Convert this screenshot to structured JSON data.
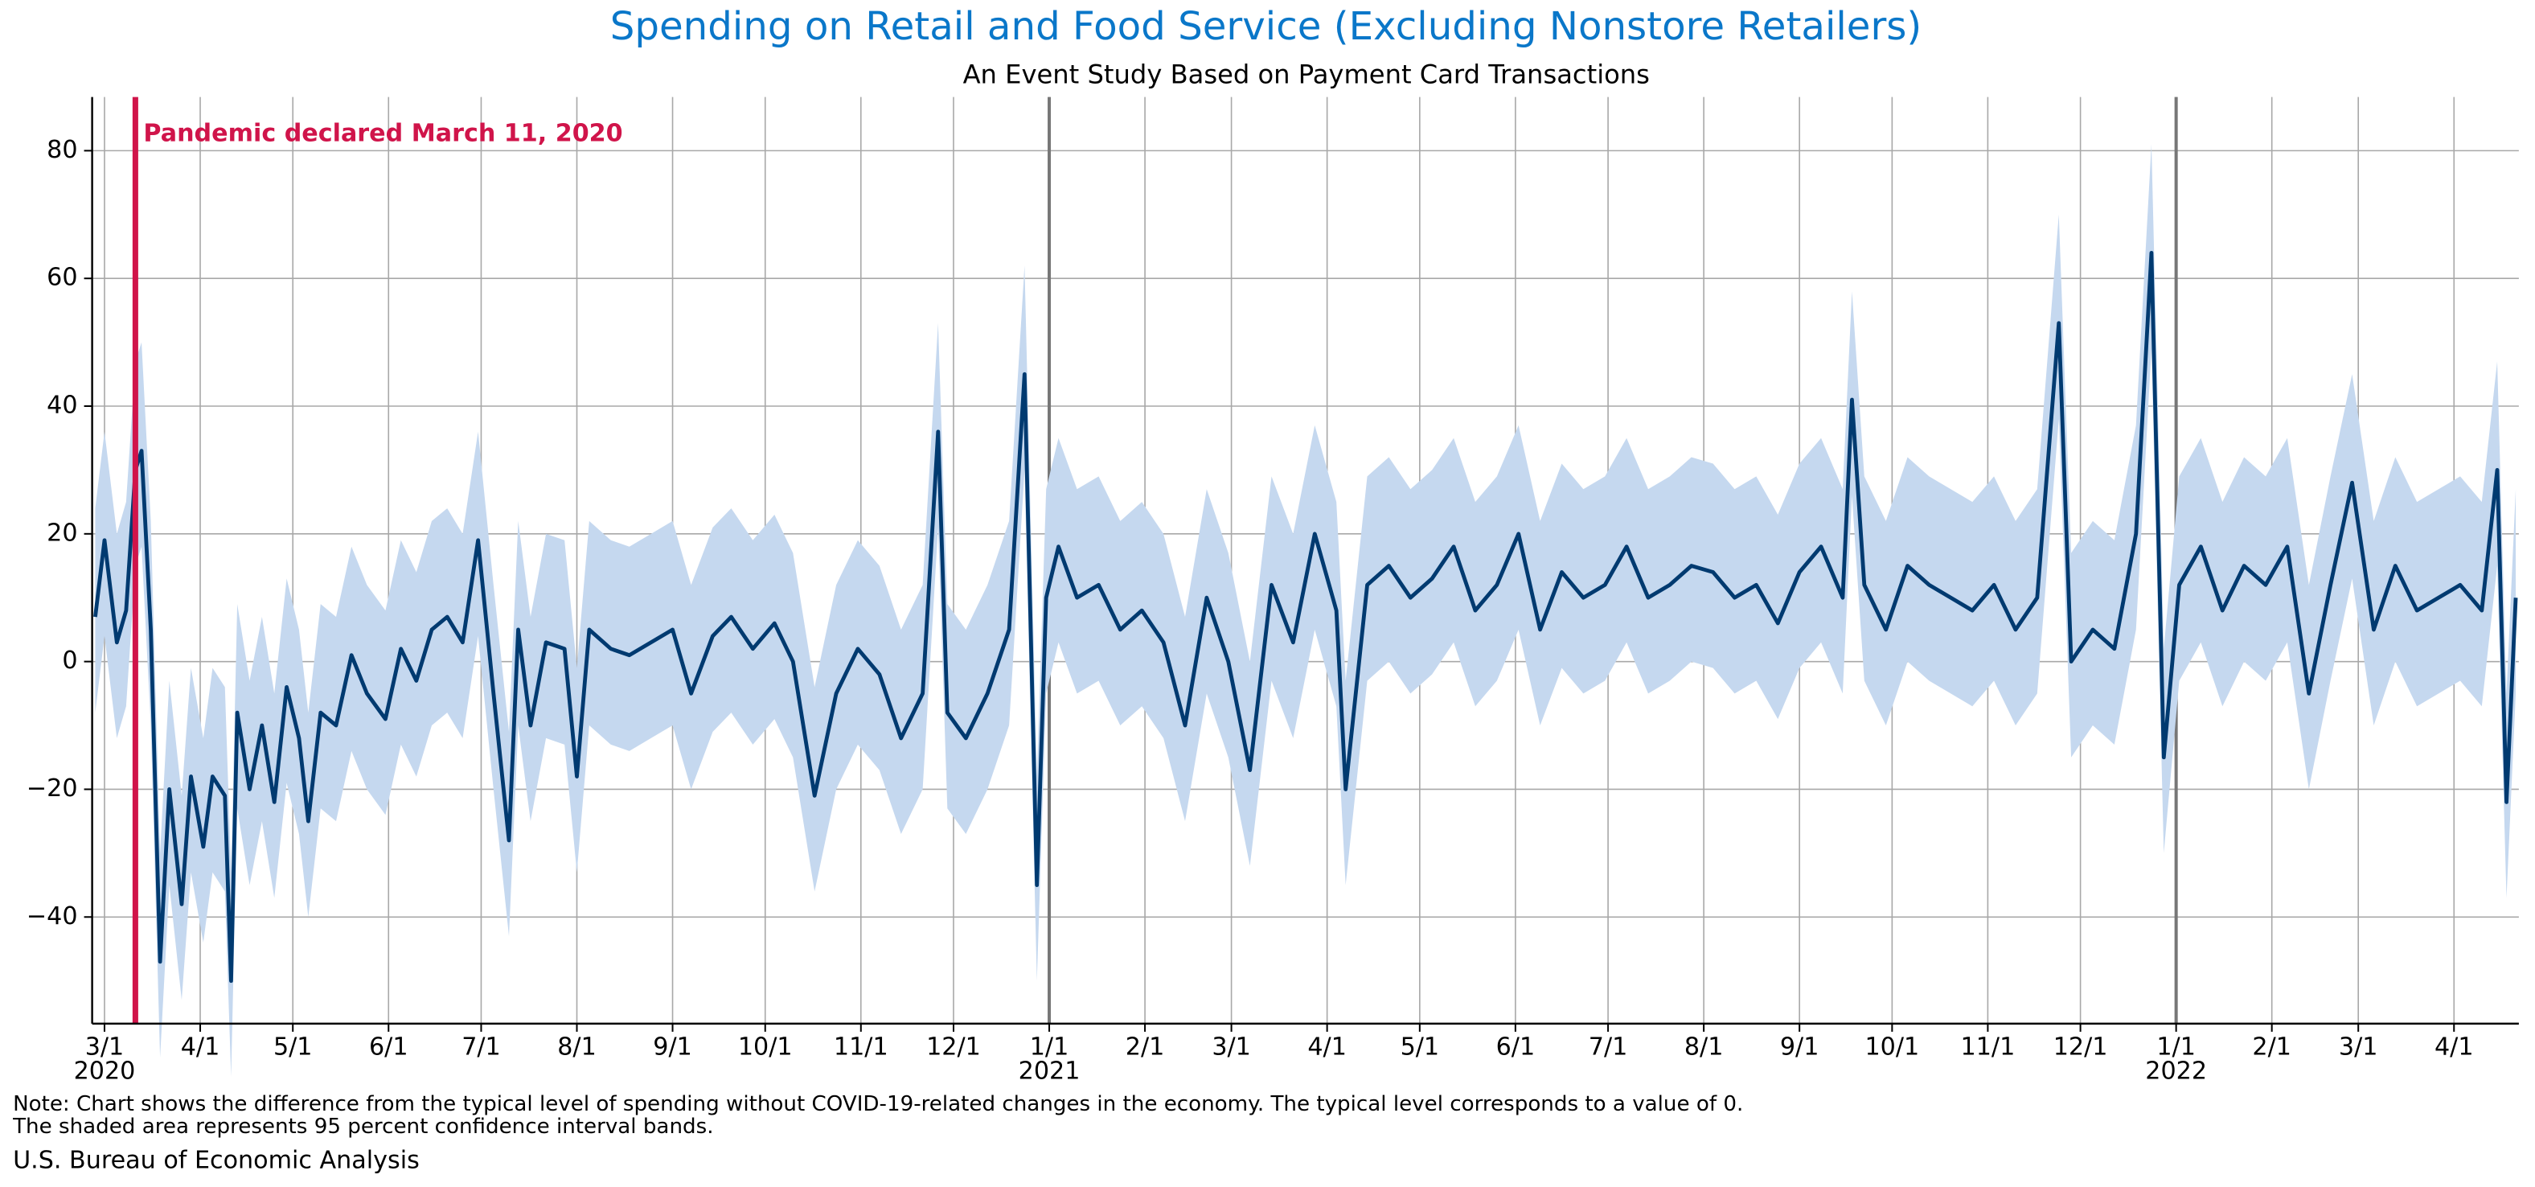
{
  "chart_data": {
    "type": "line",
    "title": "Spending on Retail and Food Service (Excluding Nonstore Retailers)",
    "subtitle": "An Event Study Based on Payment Card Transactions",
    "title_color": "#0a77c9",
    "color": "#003a70",
    "band_color": "#c5d8ef",
    "grid": true,
    "xlim": [
      "2020-02-26",
      "2022-04-22"
    ],
    "ylim": [
      -56.7,
      88.4
    ],
    "yticks": [
      {
        "value": -40,
        "label": "−40"
      },
      {
        "value": -20,
        "label": "−20"
      },
      0,
      20,
      40,
      60,
      80
    ],
    "xticks": [
      {
        "value": "2020-03-01",
        "label": "3/1"
      },
      {
        "value": "2020-04-01",
        "label": "4/1"
      },
      {
        "value": "2020-05-01",
        "label": "5/1"
      },
      {
        "value": "2020-06-01",
        "label": "6/1"
      },
      {
        "value": "2020-07-01",
        "label": "7/1"
      },
      {
        "value": "2020-08-01",
        "label": "8/1"
      },
      {
        "value": "2020-09-01",
        "label": "9/1"
      },
      {
        "value": "2020-10-01",
        "label": "10/1"
      },
      {
        "value": "2020-11-01",
        "label": "11/1"
      },
      {
        "value": "2020-12-01",
        "label": "12/1"
      },
      {
        "value": "2021-01-01",
        "label": "1/1"
      },
      {
        "value": "2021-02-01",
        "label": "2/1"
      },
      {
        "value": "2021-03-01",
        "label": "3/1"
      },
      {
        "value": "2021-04-01",
        "label": "4/1"
      },
      {
        "value": "2021-05-01",
        "label": "5/1"
      },
      {
        "value": "2021-06-01",
        "label": "6/1"
      },
      {
        "value": "2021-07-01",
        "label": "7/1"
      },
      {
        "value": "2021-08-01",
        "label": "8/1"
      },
      {
        "value": "2021-09-01",
        "label": "9/1"
      },
      {
        "value": "2021-10-01",
        "label": "10/1"
      },
      {
        "value": "2021-11-01",
        "label": "11/1"
      },
      {
        "value": "2021-12-01",
        "label": "12/1"
      },
      {
        "value": "2022-01-01",
        "label": "1/1"
      },
      {
        "value": "2022-02-01",
        "label": "2/1"
      },
      {
        "value": "2022-03-01",
        "label": "3/1"
      },
      {
        "value": "2022-04-01",
        "label": "4/1"
      }
    ],
    "year_labels": [
      {
        "value": "2020-03-01",
        "label": "2020"
      },
      {
        "value": "2021-01-01",
        "label": "2021"
      },
      {
        "value": "2022-01-01",
        "label": "2022"
      }
    ],
    "year_lines": [
      "2021-01-01",
      "2022-01-01"
    ],
    "event_line": {
      "value": "2020-03-11",
      "label": "Pandemic declared March 11, 2020",
      "color": "#d0144a"
    },
    "x": [
      "2020-02-27",
      "2020-03-01",
      "2020-03-05",
      "2020-03-08",
      "2020-03-11",
      "2020-03-13",
      "2020-03-16",
      "2020-03-19",
      "2020-03-22",
      "2020-03-26",
      "2020-03-29",
      "2020-04-02",
      "2020-04-05",
      "2020-04-09",
      "2020-04-11",
      "2020-04-13",
      "2020-04-17",
      "2020-04-21",
      "2020-04-25",
      "2020-04-29",
      "2020-05-03",
      "2020-05-06",
      "2020-05-10",
      "2020-05-15",
      "2020-05-20",
      "2020-05-25",
      "2020-05-31",
      "2020-06-05",
      "2020-06-10",
      "2020-06-15",
      "2020-06-20",
      "2020-06-25",
      "2020-06-30",
      "2020-07-05",
      "2020-07-10",
      "2020-07-13",
      "2020-07-17",
      "2020-07-22",
      "2020-07-28",
      "2020-08-01",
      "2020-08-05",
      "2020-08-12",
      "2020-08-18",
      "2020-08-25",
      "2020-09-01",
      "2020-09-07",
      "2020-09-14",
      "2020-09-20",
      "2020-09-27",
      "2020-10-04",
      "2020-10-10",
      "2020-10-17",
      "2020-10-24",
      "2020-10-31",
      "2020-11-07",
      "2020-11-14",
      "2020-11-21",
      "2020-11-26",
      "2020-11-29",
      "2020-12-05",
      "2020-12-12",
      "2020-12-19",
      "2020-12-24",
      "2020-12-28",
      "2020-12-31",
      "2021-01-04",
      "2021-01-10",
      "2021-01-17",
      "2021-01-24",
      "2021-01-31",
      "2021-02-07",
      "2021-02-14",
      "2021-02-21",
      "2021-02-28",
      "2021-03-07",
      "2021-03-14",
      "2021-03-21",
      "2021-03-28",
      "2021-04-04",
      "2021-04-07",
      "2021-04-14",
      "2021-04-21",
      "2021-04-28",
      "2021-05-05",
      "2021-05-12",
      "2021-05-19",
      "2021-05-26",
      "2021-06-02",
      "2021-06-09",
      "2021-06-16",
      "2021-06-23",
      "2021-06-30",
      "2021-07-07",
      "2021-07-14",
      "2021-07-21",
      "2021-07-28",
      "2021-08-04",
      "2021-08-11",
      "2021-08-18",
      "2021-08-25",
      "2021-09-01",
      "2021-09-08",
      "2021-09-15",
      "2021-09-18",
      "2021-09-22",
      "2021-09-29",
      "2021-10-06",
      "2021-10-13",
      "2021-10-20",
      "2021-10-27",
      "2021-11-03",
      "2021-11-10",
      "2021-11-17",
      "2021-11-24",
      "2021-11-28",
      "2021-12-05",
      "2021-12-12",
      "2021-12-19",
      "2021-12-24",
      "2021-12-28",
      "2022-01-02",
      "2022-01-09",
      "2022-01-16",
      "2022-01-23",
      "2022-01-30",
      "2022-02-06",
      "2022-02-13",
      "2022-02-20",
      "2022-02-27",
      "2022-03-06",
      "2022-03-13",
      "2022-03-20",
      "2022-03-27",
      "2022-04-03",
      "2022-04-10",
      "2022-04-15",
      "2022-04-18",
      "2022-04-21"
    ],
    "values": [
      7,
      19,
      3,
      8,
      30,
      33,
      5,
      -47,
      -20,
      -38,
      -18,
      -29,
      -18,
      -21,
      -50,
      -8,
      -20,
      -10,
      -22,
      -4,
      -12,
      -25,
      -8,
      -10,
      1,
      -5,
      -9,
      2,
      -3,
      5,
      7,
      3,
      19,
      -5,
      -28,
      5,
      -10,
      3,
      2,
      -18,
      5,
      2,
      1,
      3,
      5,
      -5,
      4,
      7,
      2,
      6,
      0,
      -21,
      -5,
      2,
      -2,
      -12,
      -5,
      36,
      -8,
      -12,
      -5,
      5,
      45,
      -35,
      10,
      18,
      10,
      12,
      5,
      8,
      3,
      -10,
      10,
      0,
      -17,
      12,
      3,
      20,
      8,
      -20,
      12,
      15,
      10,
      13,
      18,
      8,
      12,
      20,
      5,
      14,
      10,
      12,
      18,
      10,
      12,
      15,
      14,
      10,
      12,
      6,
      14,
      18,
      10,
      41,
      12,
      5,
      15,
      12,
      10,
      8,
      12,
      5,
      10,
      53,
      0,
      5,
      2,
      20,
      64,
      -15,
      12,
      18,
      8,
      15,
      12,
      18,
      -5,
      12,
      28,
      5,
      15,
      8,
      10,
      12,
      8,
      30,
      -22,
      10
    ],
    "lower": [
      -8,
      4,
      -12,
      -7,
      15,
      18,
      -10,
      -62,
      -35,
      -53,
      -33,
      -44,
      -33,
      -36,
      -65,
      -23,
      -35,
      -25,
      -37,
      -19,
      -27,
      -40,
      -23,
      -25,
      -14,
      -20,
      -24,
      -13,
      -18,
      -10,
      -8,
      -12,
      4,
      -20,
      -43,
      -10,
      -25,
      -12,
      -13,
      -33,
      -10,
      -13,
      -14,
      -12,
      -10,
      -20,
      -11,
      -8,
      -13,
      -9,
      -15,
      -36,
      -20,
      -13,
      -17,
      -27,
      -20,
      21,
      -23,
      -27,
      -20,
      -10,
      30,
      -50,
      -5,
      3,
      -5,
      -3,
      -10,
      -7,
      -12,
      -25,
      -5,
      -15,
      -32,
      -3,
      -12,
      5,
      -7,
      -35,
      -3,
      0,
      -5,
      -2,
      3,
      -7,
      -3,
      5,
      -10,
      -1,
      -5,
      -3,
      3,
      -5,
      -3,
      0,
      -1,
      -5,
      -3,
      -9,
      -1,
      3,
      -5,
      26,
      -3,
      -10,
      0,
      -3,
      -5,
      -7,
      -3,
      -10,
      -5,
      38,
      -15,
      -10,
      -13,
      5,
      49,
      -30,
      -3,
      3,
      -7,
      0,
      -3,
      3,
      -20,
      -3,
      13,
      -10,
      0,
      -7,
      -5,
      -3,
      -7,
      15,
      -37,
      -5
    ],
    "upper": [
      24,
      36,
      20,
      25,
      47,
      50,
      22,
      -30,
      -3,
      -21,
      -1,
      -12,
      -1,
      -4,
      -33,
      9,
      -3,
      7,
      -5,
      13,
      5,
      -8,
      9,
      7,
      18,
      12,
      8,
      19,
      14,
      22,
      24,
      20,
      36,
      12,
      -11,
      22,
      7,
      20,
      19,
      -1,
      22,
      19,
      18,
      20,
      22,
      12,
      21,
      24,
      19,
      23,
      17,
      -4,
      12,
      19,
      15,
      5,
      12,
      53,
      9,
      5,
      12,
      22,
      62,
      -18,
      27,
      35,
      27,
      29,
      22,
      25,
      20,
      7,
      27,
      17,
      0,
      29,
      20,
      37,
      25,
      -3,
      29,
      32,
      27,
      30,
      35,
      25,
      29,
      37,
      22,
      31,
      27,
      29,
      35,
      27,
      29,
      32,
      31,
      27,
      29,
      23,
      31,
      35,
      27,
      58,
      29,
      22,
      32,
      29,
      27,
      25,
      29,
      22,
      27,
      70,
      17,
      22,
      19,
      37,
      81,
      2,
      29,
      35,
      25,
      32,
      29,
      35,
      12,
      29,
      45,
      22,
      32,
      25,
      27,
      29,
      25,
      47,
      -5,
      27
    ],
    "note": [
      "Note: Chart shows the difference from the typical level of spending without COVID-19-related changes in the economy. The typical level corresponds to a value of 0.",
      "The shaded area represents 95 percent confidence interval bands."
    ],
    "source": "U.S. Bureau of Economic Analysis"
  }
}
